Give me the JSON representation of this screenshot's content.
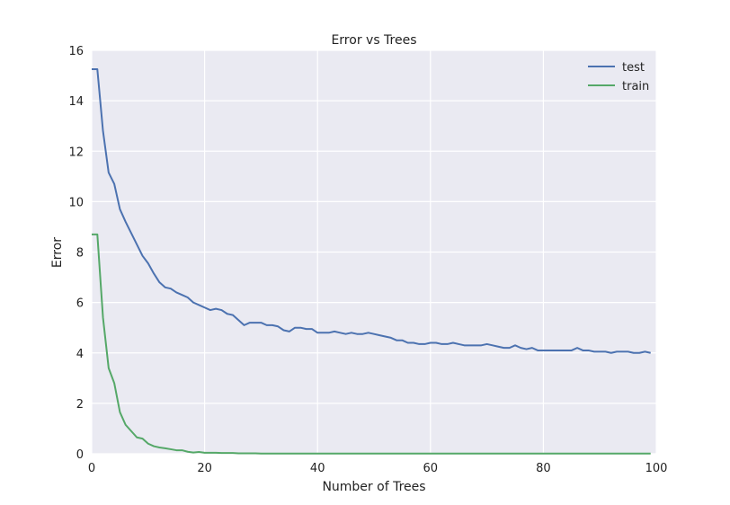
{
  "chart_data": {
    "type": "line",
    "title": "Error vs Trees",
    "xlabel": "Number of Trees",
    "ylabel": "Error",
    "xlim": [
      0,
      100
    ],
    "ylim": [
      0,
      16
    ],
    "xticks": [
      0,
      20,
      40,
      60,
      80,
      100
    ],
    "yticks": [
      0,
      2,
      4,
      6,
      8,
      10,
      12,
      14,
      16
    ],
    "grid": true,
    "legend_position": "top-right",
    "background_color": "#EAEAF2",
    "series": [
      {
        "name": "test",
        "color": "#4C72B0",
        "x": [
          0,
          1,
          2,
          3,
          4,
          5,
          6,
          7,
          8,
          9,
          10,
          11,
          12,
          13,
          14,
          15,
          16,
          17,
          18,
          19,
          20,
          21,
          22,
          23,
          24,
          25,
          26,
          27,
          28,
          29,
          30,
          31,
          32,
          33,
          34,
          35,
          36,
          37,
          38,
          39,
          40,
          41,
          42,
          43,
          44,
          45,
          46,
          47,
          48,
          49,
          50,
          51,
          52,
          53,
          54,
          55,
          56,
          57,
          58,
          59,
          60,
          61,
          62,
          63,
          64,
          65,
          66,
          67,
          68,
          69,
          70,
          71,
          72,
          73,
          74,
          75,
          76,
          77,
          78,
          79,
          80,
          81,
          82,
          83,
          84,
          85,
          86,
          87,
          88,
          89,
          90,
          91,
          92,
          93,
          94,
          95,
          96,
          97,
          98,
          99
        ],
        "values": [
          15.25,
          15.25,
          12.8,
          11.15,
          10.7,
          9.7,
          9.2,
          8.75,
          8.3,
          7.85,
          7.55,
          7.15,
          6.8,
          6.6,
          6.55,
          6.4,
          6.3,
          6.2,
          6.0,
          5.9,
          5.8,
          5.7,
          5.75,
          5.7,
          5.55,
          5.5,
          5.3,
          5.1,
          5.2,
          5.2,
          5.2,
          5.1,
          5.1,
          5.05,
          4.9,
          4.85,
          5.0,
          5.0,
          4.95,
          4.95,
          4.8,
          4.8,
          4.8,
          4.85,
          4.8,
          4.75,
          4.8,
          4.75,
          4.75,
          4.8,
          4.75,
          4.7,
          4.65,
          4.6,
          4.5,
          4.5,
          4.4,
          4.4,
          4.35,
          4.35,
          4.4,
          4.4,
          4.35,
          4.35,
          4.4,
          4.35,
          4.3,
          4.3,
          4.3,
          4.3,
          4.35,
          4.3,
          4.25,
          4.2,
          4.2,
          4.3,
          4.2,
          4.15,
          4.2,
          4.1,
          4.1,
          4.1,
          4.1,
          4.1,
          4.1,
          4.1,
          4.2,
          4.1,
          4.1,
          4.05,
          4.05,
          4.05,
          4.0,
          4.05,
          4.05,
          4.05,
          4.0,
          4.0,
          4.05,
          4.0
        ]
      },
      {
        "name": "train",
        "color": "#55A868",
        "x": [
          0,
          1,
          2,
          3,
          4,
          5,
          6,
          7,
          8,
          9,
          10,
          11,
          12,
          13,
          14,
          15,
          16,
          17,
          18,
          19,
          20,
          21,
          22,
          23,
          24,
          25,
          26,
          27,
          28,
          29,
          30,
          31,
          32,
          33,
          34,
          35,
          36,
          37,
          38,
          39,
          40,
          41,
          42,
          43,
          44,
          45,
          46,
          47,
          48,
          49,
          50,
          51,
          52,
          53,
          54,
          55,
          56,
          57,
          58,
          59,
          60,
          61,
          62,
          63,
          64,
          65,
          66,
          67,
          68,
          69,
          70,
          71,
          72,
          73,
          74,
          75,
          76,
          77,
          78,
          79,
          80,
          81,
          82,
          83,
          84,
          85,
          86,
          87,
          88,
          89,
          90,
          91,
          92,
          93,
          94,
          95,
          96,
          97,
          98,
          99
        ],
        "values": [
          8.7,
          8.7,
          5.4,
          3.4,
          2.8,
          1.65,
          1.15,
          0.9,
          0.65,
          0.6,
          0.4,
          0.3,
          0.25,
          0.22,
          0.18,
          0.14,
          0.14,
          0.08,
          0.05,
          0.07,
          0.04,
          0.04,
          0.04,
          0.03,
          0.03,
          0.03,
          0.02,
          0.02,
          0.02,
          0.02,
          0.01,
          0.01,
          0.01,
          0.01,
          0.01,
          0.01,
          0.01,
          0.01,
          0.01,
          0.01,
          0.01,
          0.01,
          0.01,
          0.01,
          0.01,
          0.01,
          0.01,
          0.01,
          0.01,
          0.01,
          0.01,
          0.01,
          0.01,
          0.01,
          0.01,
          0.01,
          0.01,
          0.01,
          0.01,
          0.01,
          0.01,
          0.01,
          0.01,
          0.01,
          0.01,
          0.01,
          0.01,
          0.01,
          0.01,
          0.01,
          0.01,
          0.01,
          0.01,
          0.01,
          0.01,
          0.01,
          0.01,
          0.01,
          0.01,
          0.01,
          0.01,
          0.01,
          0.01,
          0.01,
          0.01,
          0.01,
          0.01,
          0.01,
          0.01,
          0.01,
          0.01,
          0.01,
          0.01,
          0.01,
          0.01,
          0.01,
          0.01,
          0.01,
          0.01,
          0.01
        ]
      }
    ]
  }
}
